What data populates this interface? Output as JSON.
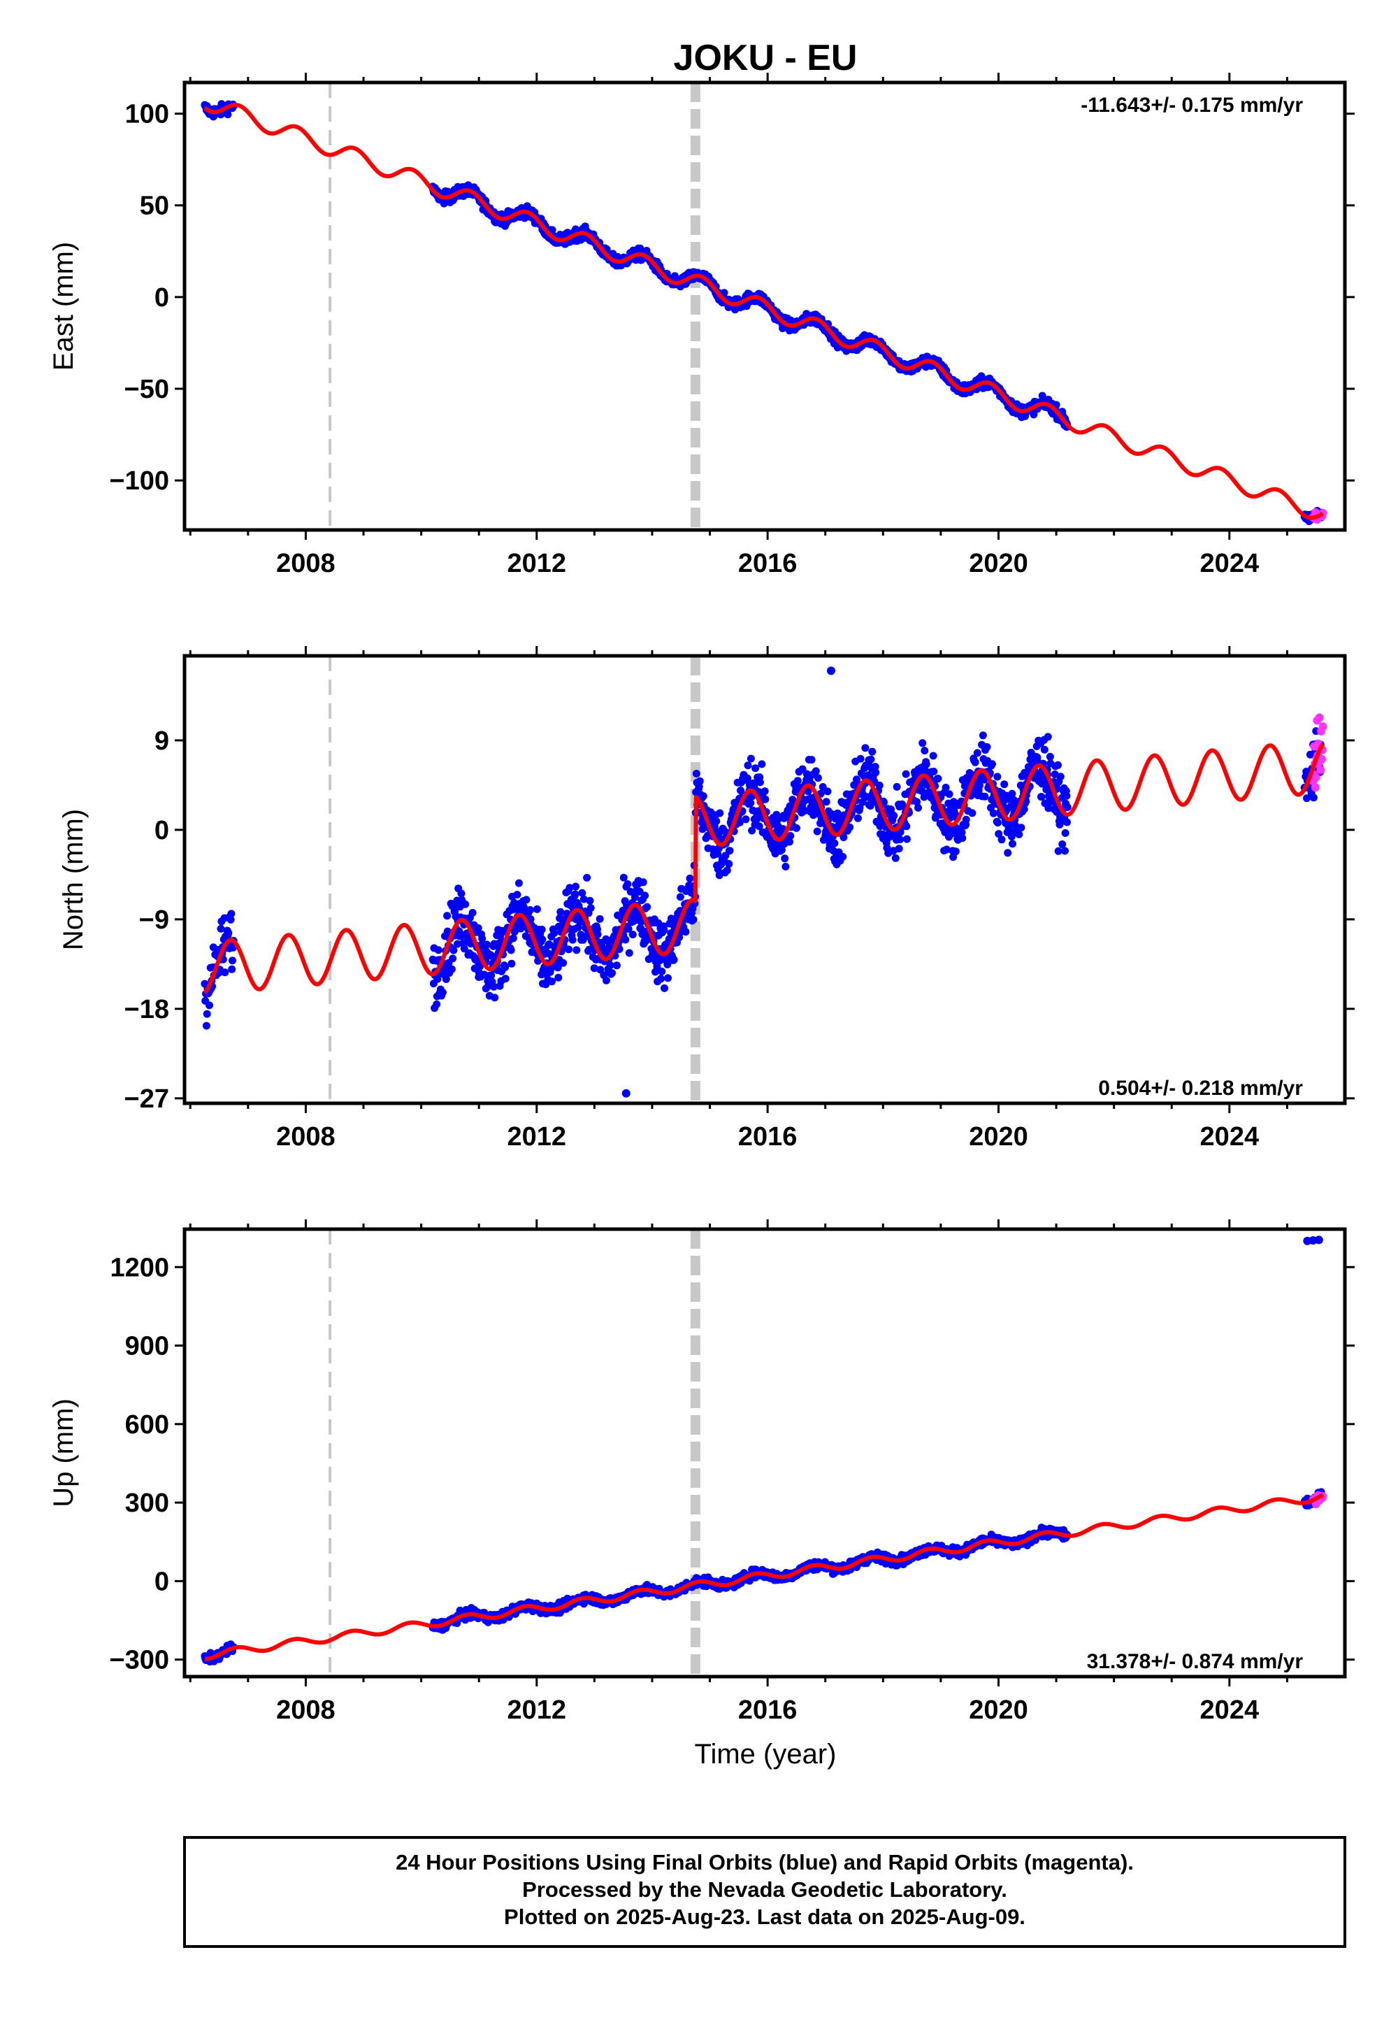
{
  "title": "JOKU - EU",
  "colors": {
    "final_orbits": "#0000ff",
    "rapid_orbits": "#ff33ff",
    "model": "#ff0000",
    "event_lines": "#c8c8c8"
  },
  "footer": {
    "line1": "24 Hour Positions Using Final Orbits (blue) and Rapid Orbits (magenta).",
    "line2": "Processed by the Nevada Geodetic Laboratory.",
    "line3": "Plotted on 2025-Aug-23. Last data on 2025-Aug-09."
  },
  "chart_data": [
    {
      "type": "scatter",
      "ylabel": "East (mm)",
      "xlabel": "",
      "rate_label": "-11.643+/- 0.175 mm/yr",
      "xlim": [
        2005.9,
        2026.0
      ],
      "ylim": [
        -127,
        117
      ],
      "x_ticks": [
        2008,
        2012,
        2016,
        2020,
        2024
      ],
      "y_ticks": [
        100,
        50,
        0,
        -50,
        -100
      ],
      "y_tick_labels": [
        "100",
        "50",
        "0",
        "−50",
        "−100"
      ],
      "event_lines": [
        {
          "x": 2008.42,
          "style": "dashed-thin"
        },
        {
          "x": 2014.75,
          "style": "dashed-thick"
        }
      ],
      "model": {
        "intercept_2015": 5.0,
        "rate": -11.643,
        "annual_amp": 4.5,
        "phase": 0.6,
        "steps": [
          {
            "x": 2014.75,
            "dy": 0
          }
        ]
      },
      "data_segments": [
        [
          2006.25,
          2006.75
        ],
        [
          2010.2,
          2021.2
        ],
        [
          2025.3,
          2025.6
        ]
      ],
      "rapid_segment": [
        2025.45,
        2025.62
      ],
      "outliers": []
    },
    {
      "type": "scatter",
      "ylabel": "North (mm)",
      "xlabel": "",
      "rate_label": "0.504+/- 0.218 mm/yr",
      "xlim": [
        2005.9,
        2026.0
      ],
      "ylim": [
        -27.5,
        17.5
      ],
      "x_ticks": [
        2008,
        2012,
        2016,
        2020,
        2024
      ],
      "y_ticks": [
        9,
        0,
        -9,
        -18,
        -27
      ],
      "y_tick_labels": [
        "9",
        "0",
        "−9",
        "−18",
        "−27"
      ],
      "event_lines": [
        {
          "x": 2008.42,
          "style": "dashed-thin"
        },
        {
          "x": 2014.75,
          "style": "dashed-thick"
        }
      ],
      "model": {
        "intercept_2015": 1.0,
        "rate": 0.504,
        "annual_amp": 2.6,
        "phase": 0.45,
        "steps": [
          {
            "x": 2014.75,
            "dy": 10.5
          }
        ]
      },
      "data_segments": [
        [
          2006.25,
          2006.75
        ],
        [
          2010.2,
          2021.2
        ],
        [
          2025.3,
          2025.6
        ]
      ],
      "rapid_segment": [
        2025.45,
        2025.62
      ],
      "outliers": [
        [
          2017.1,
          16.0
        ],
        [
          2013.55,
          -26.5
        ]
      ]
    },
    {
      "type": "scatter",
      "ylabel": "Up (mm)",
      "xlabel": "Time (year)",
      "rate_label": "31.378+/- 0.874 mm/yr",
      "xlim": [
        2005.9,
        2026.0
      ],
      "ylim": [
        -365,
        1345
      ],
      "x_ticks": [
        2008,
        2012,
        2016,
        2020,
        2024
      ],
      "y_ticks": [
        1200,
        900,
        600,
        300,
        0,
        -300
      ],
      "y_tick_labels": [
        "1200",
        "900",
        "600",
        "300",
        "0",
        "−300"
      ],
      "event_lines": [
        {
          "x": 2008.42,
          "style": "dashed-thin"
        },
        {
          "x": 2014.75,
          "style": "dashed-thick"
        }
      ],
      "model": {
        "intercept_2015": -10.0,
        "rate": 31.378,
        "annual_amp": 14.0,
        "phase": 0.55,
        "steps": []
      },
      "data_segments": [
        [
          2006.25,
          2006.75
        ],
        [
          2010.2,
          2021.2
        ],
        [
          2025.3,
          2025.6
        ]
      ],
      "rapid_segment": [
        2025.45,
        2025.62
      ],
      "outliers": [
        [
          2025.35,
          1300
        ],
        [
          2025.45,
          1302
        ],
        [
          2025.55,
          1304
        ]
      ]
    }
  ]
}
